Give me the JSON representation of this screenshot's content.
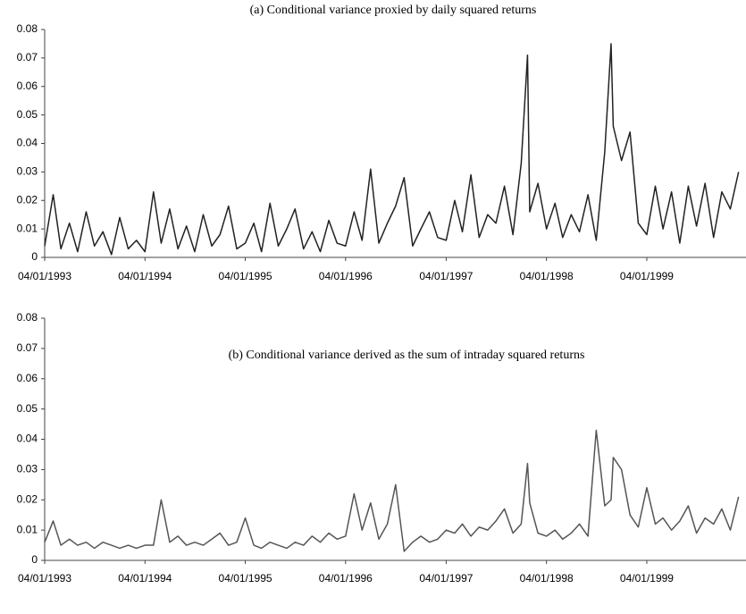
{
  "chart_data": [
    {
      "type": "line",
      "title": "(a) Conditional variance proxied by daily squared returns",
      "x": [
        "1993-01-04",
        "1993-02-04",
        "1993-03-04",
        "1993-04-04",
        "1993-05-04",
        "1993-06-04",
        "1993-07-04",
        "1993-08-04",
        "1993-09-04",
        "1993-10-04",
        "1993-11-04",
        "1993-12-04",
        "1994-01-04",
        "1994-02-04",
        "1994-03-04",
        "1994-04-04",
        "1994-05-04",
        "1994-06-04",
        "1994-07-04",
        "1994-08-04",
        "1994-09-04",
        "1994-10-04",
        "1994-11-04",
        "1994-12-04",
        "1995-01-04",
        "1995-02-04",
        "1995-03-04",
        "1995-04-04",
        "1995-05-04",
        "1995-06-04",
        "1995-07-04",
        "1995-08-04",
        "1995-09-04",
        "1995-10-04",
        "1995-11-04",
        "1995-12-04",
        "1996-01-04",
        "1996-02-04",
        "1996-03-04",
        "1996-04-04",
        "1996-05-04",
        "1996-06-04",
        "1996-07-04",
        "1996-08-04",
        "1996-09-04",
        "1996-10-04",
        "1996-11-04",
        "1996-12-04",
        "1997-01-04",
        "1997-02-04",
        "1997-03-04",
        "1997-04-04",
        "1997-05-04",
        "1997-06-04",
        "1997-07-04",
        "1997-08-04",
        "1997-09-04",
        "1997-10-04",
        "1997-10-27",
        "1997-11-04",
        "1997-12-04",
        "1998-01-04",
        "1998-02-04",
        "1998-03-04",
        "1998-04-04",
        "1998-05-04",
        "1998-06-04",
        "1998-07-04",
        "1998-08-04",
        "1998-08-27",
        "1998-09-04",
        "1998-10-04",
        "1998-11-04",
        "1998-12-04",
        "1999-01-04",
        "1999-02-04",
        "1999-03-04",
        "1999-04-04",
        "1999-05-04",
        "1999-06-04",
        "1999-07-04",
        "1999-08-04",
        "1999-09-04",
        "1999-10-04",
        "1999-11-04",
        "1999-12-04"
      ],
      "series": [
        {
          "color": "#222222",
          "values": [
            0.004,
            0.022,
            0.003,
            0.012,
            0.002,
            0.016,
            0.004,
            0.009,
            0.001,
            0.014,
            0.003,
            0.006,
            0.002,
            0.023,
            0.005,
            0.017,
            0.003,
            0.011,
            0.002,
            0.015,
            0.004,
            0.008,
            0.018,
            0.003,
            0.005,
            0.012,
            0.002,
            0.019,
            0.004,
            0.01,
            0.017,
            0.003,
            0.009,
            0.002,
            0.013,
            0.005,
            0.004,
            0.016,
            0.006,
            0.031,
            0.005,
            0.012,
            0.018,
            0.028,
            0.004,
            0.01,
            0.016,
            0.007,
            0.006,
            0.02,
            0.009,
            0.029,
            0.007,
            0.015,
            0.012,
            0.025,
            0.008,
            0.033,
            0.071,
            0.016,
            0.026,
            0.01,
            0.019,
            0.007,
            0.015,
            0.009,
            0.022,
            0.006,
            0.037,
            0.075,
            0.046,
            0.034,
            0.044,
            0.012,
            0.008,
            0.025,
            0.01,
            0.023,
            0.005,
            0.025,
            0.011,
            0.026,
            0.007,
            0.023,
            0.017,
            0.03
          ]
        }
      ],
      "xlim": [
        "1993-01-04",
        "1999-12-31"
      ],
      "xticks": [
        {
          "value": "1993-01-04",
          "label": "04/01/1993"
        },
        {
          "value": "1994-01-04",
          "label": "04/01/1994"
        },
        {
          "value": "1995-01-04",
          "label": "04/01/1995"
        },
        {
          "value": "1996-01-04",
          "label": "04/01/1996"
        },
        {
          "value": "1997-01-04",
          "label": "04/01/1997"
        },
        {
          "value": "1998-01-04",
          "label": "04/01/1998"
        },
        {
          "value": "1999-01-04",
          "label": "04/01/1999"
        }
      ],
      "ylim": [
        0,
        0.08
      ],
      "yticks": [
        0,
        0.01,
        0.02,
        0.03,
        0.04,
        0.05,
        0.06,
        0.07,
        0.08
      ]
    },
    {
      "type": "line",
      "title": "(b) Conditional variance derived as the sum of intraday squared returns",
      "x": [
        "1993-01-04",
        "1993-02-04",
        "1993-03-04",
        "1993-04-04",
        "1993-05-04",
        "1993-06-04",
        "1993-07-04",
        "1993-08-04",
        "1993-09-04",
        "1993-10-04",
        "1993-11-04",
        "1993-12-04",
        "1994-01-04",
        "1994-02-04",
        "1994-03-04",
        "1994-04-04",
        "1994-05-04",
        "1994-06-04",
        "1994-07-04",
        "1994-08-04",
        "1994-09-04",
        "1994-10-04",
        "1994-11-04",
        "1994-12-04",
        "1995-01-04",
        "1995-02-04",
        "1995-03-04",
        "1995-04-04",
        "1995-05-04",
        "1995-06-04",
        "1995-07-04",
        "1995-08-04",
        "1995-09-04",
        "1995-10-04",
        "1995-11-04",
        "1995-12-04",
        "1996-01-04",
        "1996-02-04",
        "1996-03-04",
        "1996-04-04",
        "1996-05-04",
        "1996-06-04",
        "1996-07-04",
        "1996-08-04",
        "1996-09-04",
        "1996-10-04",
        "1996-11-04",
        "1996-12-04",
        "1997-01-04",
        "1997-02-04",
        "1997-03-04",
        "1997-04-04",
        "1997-05-04",
        "1997-06-04",
        "1997-07-04",
        "1997-08-04",
        "1997-09-04",
        "1997-10-04",
        "1997-10-27",
        "1997-11-04",
        "1997-12-04",
        "1998-01-04",
        "1998-02-04",
        "1998-03-04",
        "1998-04-04",
        "1998-05-04",
        "1998-06-04",
        "1998-07-04",
        "1998-08-04",
        "1998-08-27",
        "1998-09-04",
        "1998-10-04",
        "1998-11-04",
        "1998-12-04",
        "1999-01-04",
        "1999-02-04",
        "1999-03-04",
        "1999-04-04",
        "1999-05-04",
        "1999-06-04",
        "1999-07-04",
        "1999-08-04",
        "1999-09-04",
        "1999-10-04",
        "1999-11-04",
        "1999-12-04"
      ],
      "series": [
        {
          "color": "#555555",
          "values": [
            0.006,
            0.013,
            0.005,
            0.007,
            0.005,
            0.006,
            0.004,
            0.006,
            0.005,
            0.004,
            0.005,
            0.004,
            0.005,
            0.005,
            0.02,
            0.006,
            0.008,
            0.005,
            0.006,
            0.005,
            0.007,
            0.009,
            0.005,
            0.006,
            0.014,
            0.005,
            0.004,
            0.006,
            0.005,
            0.004,
            0.006,
            0.005,
            0.008,
            0.006,
            0.009,
            0.007,
            0.008,
            0.022,
            0.01,
            0.019,
            0.007,
            0.012,
            0.025,
            0.003,
            0.006,
            0.008,
            0.006,
            0.007,
            0.01,
            0.009,
            0.012,
            0.008,
            0.011,
            0.01,
            0.013,
            0.017,
            0.009,
            0.012,
            0.032,
            0.019,
            0.009,
            0.008,
            0.01,
            0.007,
            0.009,
            0.012,
            0.008,
            0.043,
            0.018,
            0.02,
            0.034,
            0.03,
            0.015,
            0.011,
            0.024,
            0.012,
            0.014,
            0.01,
            0.013,
            0.018,
            0.009,
            0.014,
            0.012,
            0.017,
            0.01,
            0.021
          ]
        }
      ],
      "xlim": [
        "1993-01-04",
        "1999-12-31"
      ],
      "xticks": [
        {
          "value": "1993-01-04",
          "label": "04/01/1993"
        },
        {
          "value": "1994-01-04",
          "label": "04/01/1994"
        },
        {
          "value": "1995-01-04",
          "label": "04/01/1995"
        },
        {
          "value": "1996-01-04",
          "label": "04/01/1996"
        },
        {
          "value": "1997-01-04",
          "label": "04/01/1997"
        },
        {
          "value": "1998-01-04",
          "label": "04/01/1998"
        },
        {
          "value": "1999-01-04",
          "label": "04/01/1999"
        }
      ],
      "ylim": [
        0,
        0.08
      ],
      "yticks": [
        0,
        0.01,
        0.02,
        0.03,
        0.04,
        0.05,
        0.06,
        0.07,
        0.08
      ]
    }
  ]
}
